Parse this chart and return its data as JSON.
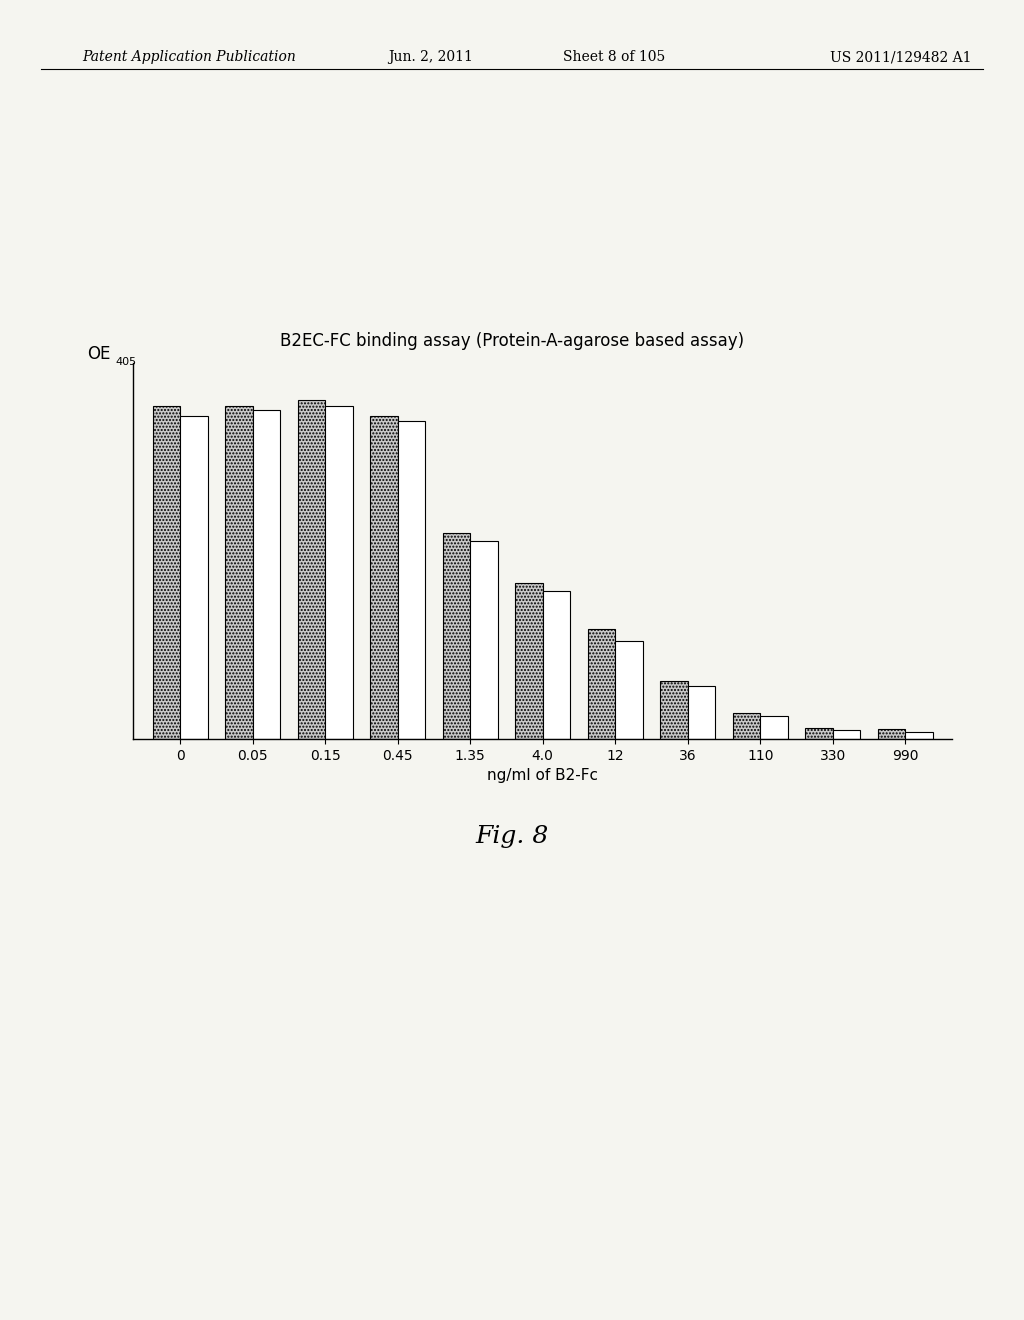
{
  "title": "B2EC-FC binding assay (Protein-A-agarose based assay)",
  "xlabel": "ng/ml of B2-Fc",
  "fig_caption": "Fig. 8",
  "categories": [
    "0",
    "0.05",
    "0.15",
    "0.45",
    "1.35",
    "4.0",
    "12",
    "36",
    "110",
    "330",
    "990"
  ],
  "bar1_values": [
    1.0,
    1.0,
    1.02,
    0.97,
    0.62,
    0.47,
    0.33,
    0.175,
    0.08,
    0.035,
    0.03
  ],
  "bar2_values": [
    0.97,
    0.99,
    1.0,
    0.955,
    0.595,
    0.445,
    0.295,
    0.16,
    0.07,
    0.028,
    0.022
  ],
  "bar1_hatch": ".....",
  "bar1_facecolor": "#c8c8c8",
  "bar2_facecolor": "#ffffff",
  "bar_edgecolor": "#000000",
  "background_color": "#f5f5f0",
  "ylim": [
    0,
    1.13
  ],
  "bar_width": 0.38,
  "title_fontsize": 12,
  "label_fontsize": 11,
  "tick_fontsize": 10,
  "caption_fontsize": 18,
  "header_line1": "Patent Application Publication",
  "header_line2": "Jun. 2, 2011",
  "header_line3": "Sheet 8 of 105",
  "header_line4": "US 2011/129482 A1",
  "header_fontsize": 10
}
